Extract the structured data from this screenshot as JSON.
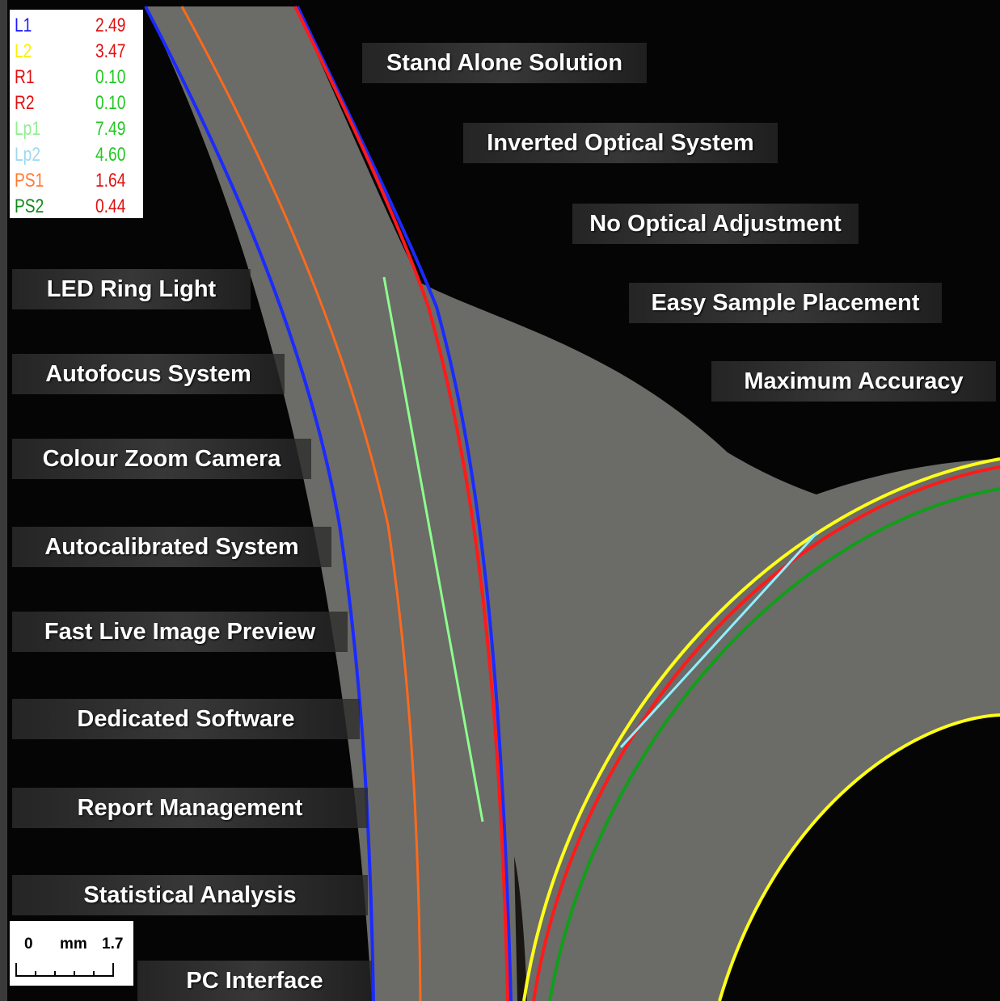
{
  "measurements": [
    {
      "label": "L1",
      "value": "2.49"
    },
    {
      "label": "L2",
      "value": "3.47"
    },
    {
      "label": "R1",
      "value": "0.10"
    },
    {
      "label": "R2",
      "value": "0.10"
    },
    {
      "label": "Lp1",
      "value": "7.49"
    },
    {
      "label": "Lp2",
      "value": "4.60"
    },
    {
      "label": "PS1",
      "value": "1.64"
    },
    {
      "label": "PS2",
      "value": "0.44"
    }
  ],
  "features": [
    "Stand Alone Solution",
    "Inverted Optical System",
    "No Optical Adjustment",
    "Easy Sample Placement",
    "Maximum Accuracy",
    "LED Ring Light",
    "Autofocus System",
    "Colour Zoom Camera",
    "Autocalibrated System",
    "Fast Live Image Preview",
    "Dedicated Software",
    "Report Management",
    "Statistical Analysis",
    "PC Interface"
  ],
  "scale": {
    "start": "0",
    "unit": "mm",
    "end": "1.7"
  }
}
